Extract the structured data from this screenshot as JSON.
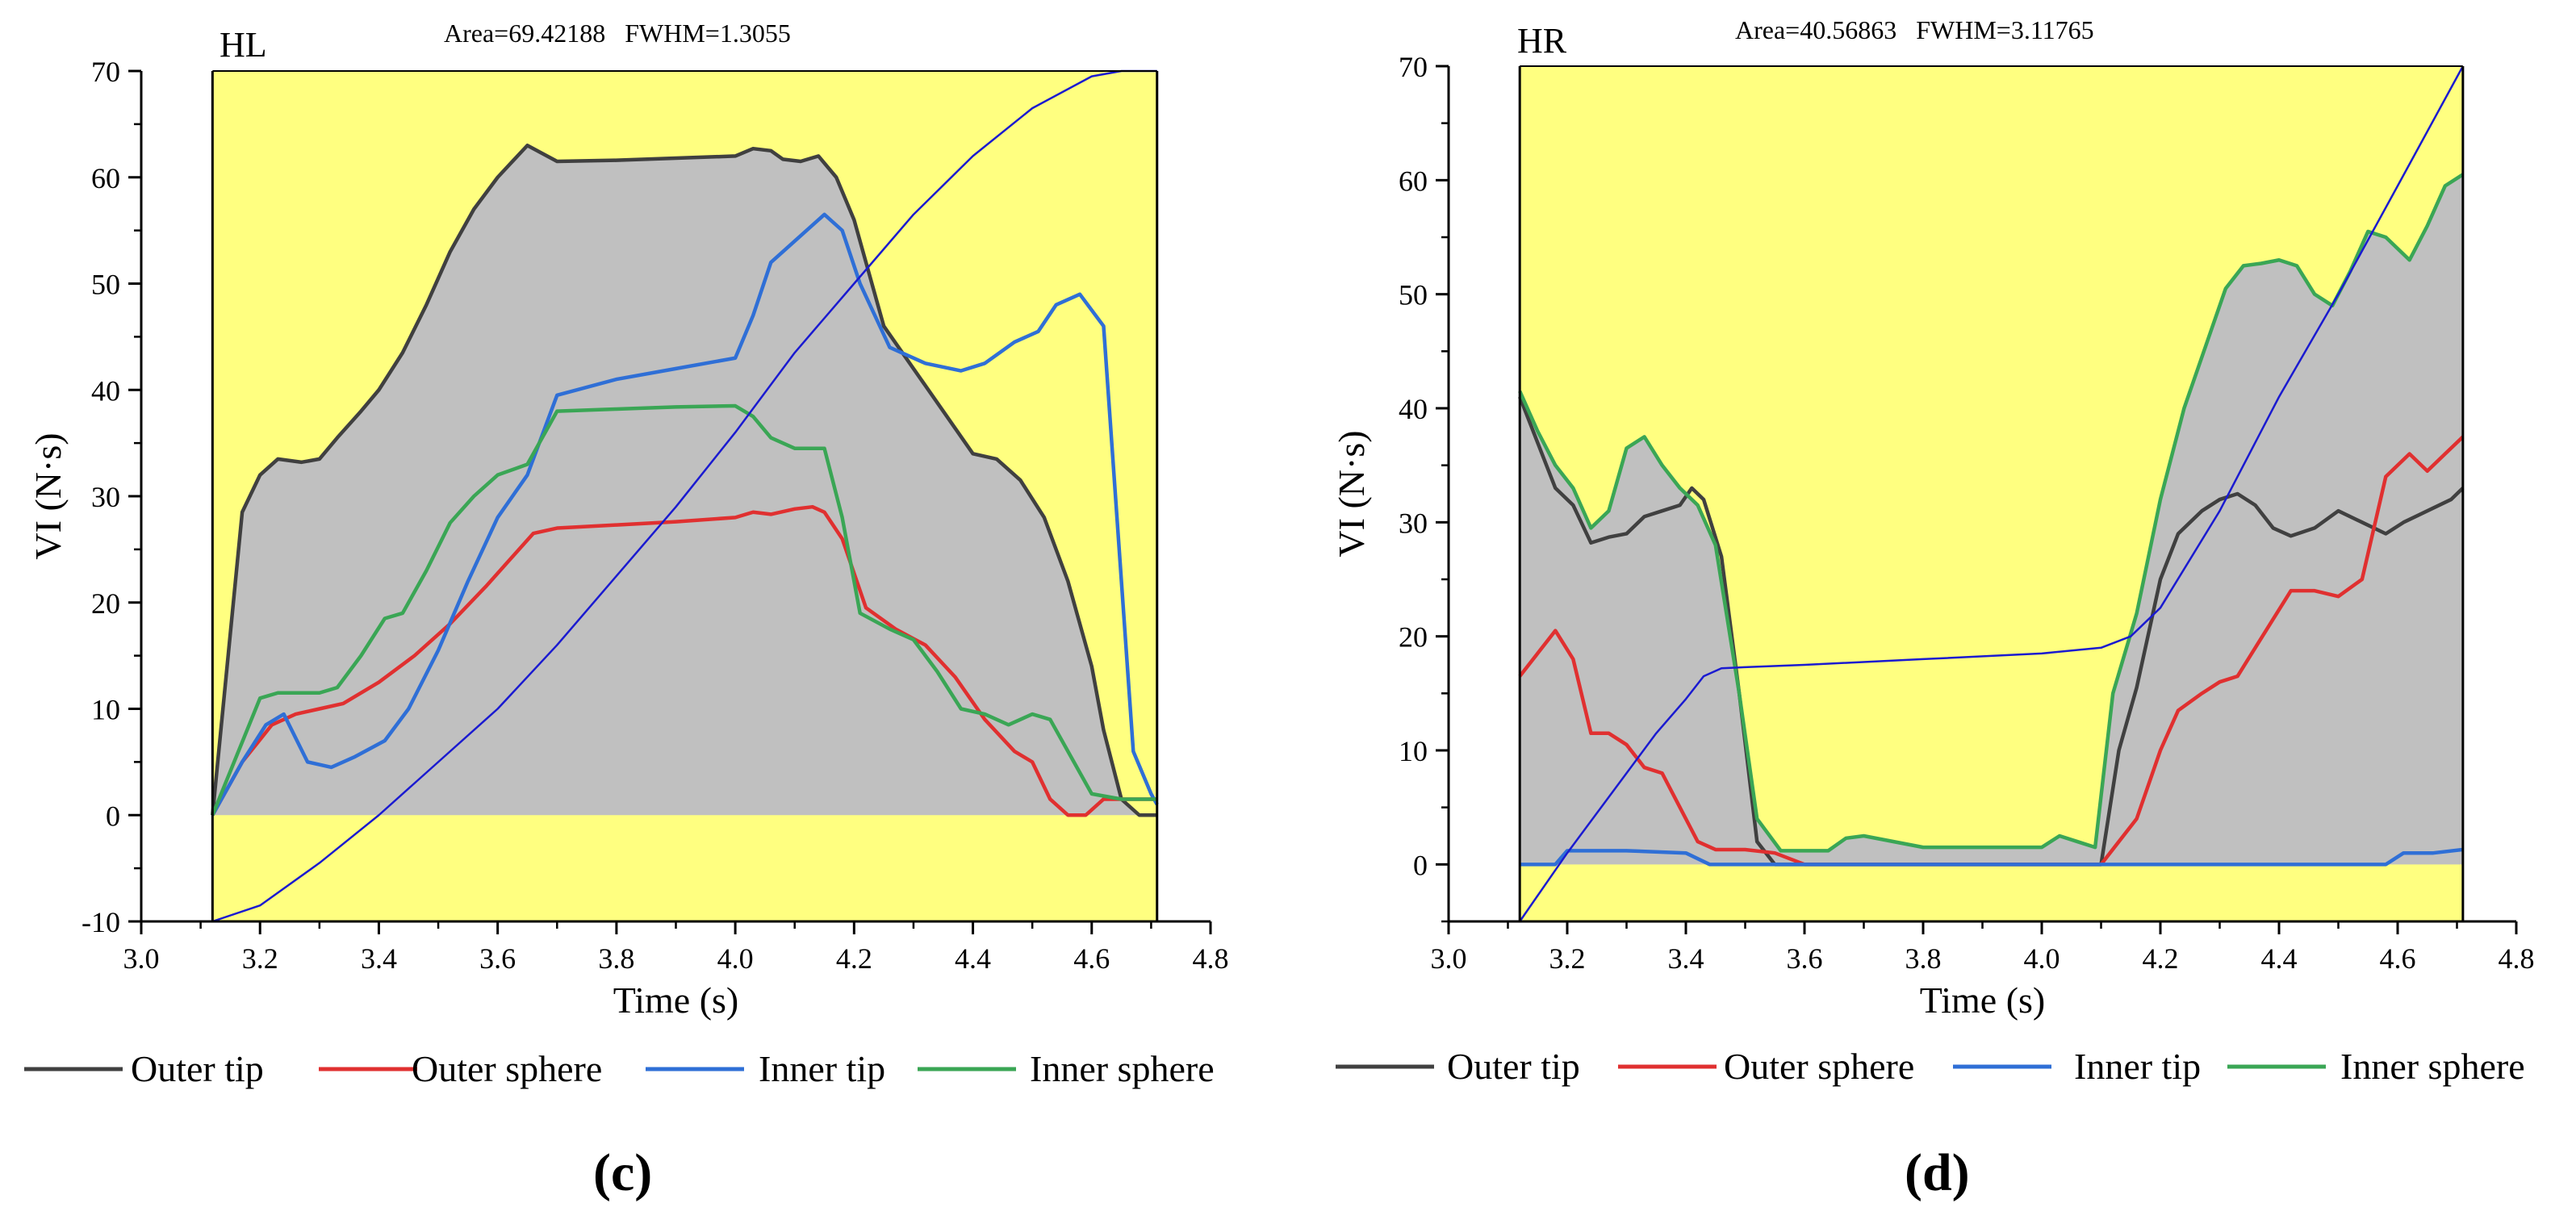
{
  "chart_data": [
    {
      "type": "line",
      "panel_label": "(c)",
      "title": "HL",
      "annotation": "Area=69.42188   FWHM=1.3055",
      "xlabel": "Time (s)",
      "ylabel": "VI (N·s)",
      "xlim": [
        3.0,
        4.8
      ],
      "ylim": [
        -10,
        70
      ],
      "plot_xrange": [
        3.12,
        4.71
      ],
      "xticks": [
        "3.0",
        "3.2",
        "3.4",
        "3.6",
        "3.8",
        "4.0",
        "4.2",
        "4.4",
        "4.6",
        "4.8"
      ],
      "yticks": [
        "-10",
        "0",
        "10",
        "20",
        "30",
        "40",
        "50",
        "60",
        "70"
      ],
      "background_color": "#ffff80",
      "fill_color": "#c0c0c0",
      "fill_between": "Outer tip",
      "fill_baseline": 0,
      "series": [
        {
          "name": "Outer tip",
          "color": "#404040",
          "x": [
            3.12,
            3.17,
            3.2,
            3.23,
            3.27,
            3.3,
            3.33,
            3.37,
            3.4,
            3.44,
            3.48,
            3.52,
            3.56,
            3.6,
            3.65,
            3.7,
            3.8,
            3.9,
            4.0,
            4.03,
            4.06,
            4.08,
            4.11,
            4.14,
            4.17,
            4.2,
            4.25,
            4.3,
            4.35,
            4.4,
            4.44,
            4.48,
            4.52,
            4.56,
            4.6,
            4.62,
            4.65,
            4.68,
            4.71
          ],
          "y": [
            0,
            28.5,
            32,
            33.5,
            33.2,
            33.5,
            35.5,
            38,
            40,
            43.5,
            48,
            53,
            57,
            60,
            63,
            61.5,
            61.6,
            61.8,
            62,
            62.7,
            62.5,
            61.7,
            61.5,
            62,
            60,
            56,
            46,
            42,
            38,
            34,
            33.5,
            31.5,
            28,
            22,
            14,
            8,
            1.5,
            0,
            0
          ]
        },
        {
          "name": "Outer sphere",
          "color": "#e03030",
          "x": [
            3.12,
            3.17,
            3.22,
            3.26,
            3.3,
            3.34,
            3.4,
            3.46,
            3.52,
            3.58,
            3.62,
            3.66,
            3.7,
            3.8,
            3.9,
            4.0,
            4.03,
            4.06,
            4.1,
            4.13,
            4.15,
            4.18,
            4.22,
            4.27,
            4.32,
            4.37,
            4.42,
            4.47,
            4.5,
            4.53,
            4.56,
            4.59,
            4.62,
            4.66,
            4.71
          ],
          "y": [
            0,
            5,
            8.5,
            9.5,
            10,
            10.5,
            12.5,
            15,
            18,
            21.5,
            24,
            26.5,
            27,
            27.3,
            27.6,
            28,
            28.5,
            28.3,
            28.8,
            29,
            28.5,
            26,
            19.5,
            17.5,
            16,
            13,
            9,
            6,
            5,
            1.5,
            0,
            0,
            1.5,
            1.5,
            1.5
          ]
        },
        {
          "name": "Inner tip",
          "color": "#2f6fd6",
          "x": [
            3.12,
            3.17,
            3.21,
            3.24,
            3.28,
            3.32,
            3.36,
            3.41,
            3.45,
            3.5,
            3.55,
            3.6,
            3.65,
            3.7,
            3.8,
            3.9,
            4.0,
            4.03,
            4.06,
            4.1,
            4.15,
            4.18,
            4.21,
            4.26,
            4.32,
            4.38,
            4.42,
            4.47,
            4.51,
            4.54,
            4.58,
            4.62,
            4.67,
            4.7,
            4.71
          ],
          "y": [
            0,
            5,
            8.5,
            9.5,
            5,
            4.5,
            5.5,
            7,
            10,
            15.5,
            22,
            28,
            32,
            39.5,
            41,
            42,
            43,
            47,
            52,
            54,
            56.5,
            55,
            50,
            44,
            42.5,
            41.8,
            42.5,
            44.5,
            45.5,
            48,
            49,
            46,
            6,
            2,
            1
          ]
        },
        {
          "name": "Inner sphere",
          "color": "#3aa655",
          "x": [
            3.12,
            3.2,
            3.23,
            3.27,
            3.3,
            3.33,
            3.37,
            3.41,
            3.44,
            3.48,
            3.52,
            3.56,
            3.6,
            3.65,
            3.7,
            3.8,
            3.9,
            4.0,
            4.03,
            4.06,
            4.1,
            4.15,
            4.18,
            4.21,
            4.26,
            4.3,
            4.34,
            4.38,
            4.42,
            4.46,
            4.5,
            4.53,
            4.57,
            4.6,
            4.65,
            4.71
          ],
          "y": [
            0,
            11,
            11.5,
            11.5,
            11.5,
            12,
            15,
            18.5,
            19,
            23,
            27.5,
            30,
            32,
            33,
            38,
            38.2,
            38.4,
            38.5,
            37.5,
            35.5,
            34.5,
            34.5,
            28,
            19,
            17.5,
            16.5,
            13.5,
            10,
            9.5,
            8.5,
            9.5,
            9,
            5,
            2,
            1.5,
            1.5
          ]
        },
        {
          "name": "",
          "color": "#1a1ad0",
          "x": [
            3.12,
            3.2,
            3.3,
            3.4,
            3.5,
            3.6,
            3.7,
            3.8,
            3.9,
            4.0,
            4.1,
            4.2,
            4.3,
            4.4,
            4.5,
            4.6,
            4.65,
            4.71
          ],
          "y": [
            -10,
            -8.5,
            -4.5,
            0,
            5,
            10,
            16,
            22.5,
            29,
            36,
            43.5,
            50,
            56.5,
            62,
            66.5,
            69.5,
            70,
            70
          ]
        }
      ]
    },
    {
      "type": "line",
      "panel_label": "(d)",
      "title": "HR",
      "annotation": "Area=40.56863   FWHM=3.11765",
      "xlabel": "Time (s)",
      "ylabel": "VI (N·s)",
      "xlim": [
        3.0,
        4.8
      ],
      "ylim": [
        -5,
        70
      ],
      "plot_xrange": [
        3.12,
        4.71
      ],
      "xticks": [
        "3.0",
        "3.2",
        "3.4",
        "3.6",
        "3.8",
        "4.0",
        "4.2",
        "4.4",
        "4.6",
        "4.8"
      ],
      "yticks": [
        "0",
        "10",
        "20",
        "30",
        "40",
        "50",
        "60",
        "70"
      ],
      "background_color": "#ffff80",
      "fill_color": "#c0c0c0",
      "fill_between": "Inner sphere",
      "fill_baseline": 0,
      "series": [
        {
          "name": "Outer tip",
          "color": "#404040",
          "x": [
            3.12,
            3.15,
            3.18,
            3.21,
            3.24,
            3.27,
            3.3,
            3.33,
            3.36,
            3.39,
            3.41,
            3.43,
            3.46,
            3.49,
            3.52,
            3.55,
            3.6,
            3.8,
            4.0,
            4.1,
            4.13,
            4.16,
            4.2,
            4.23,
            4.27,
            4.3,
            4.33,
            4.36,
            4.39,
            4.42,
            4.46,
            4.5,
            4.54,
            4.58,
            4.61,
            4.65,
            4.69,
            4.71
          ],
          "y": [
            41,
            37,
            33,
            31.5,
            28.2,
            28.7,
            29,
            30.5,
            31,
            31.5,
            33,
            32,
            27,
            15,
            2,
            0,
            0,
            0,
            0,
            0,
            10,
            15.5,
            25,
            29,
            31,
            32,
            32.5,
            31.5,
            29.5,
            28.8,
            29.5,
            31,
            30,
            29,
            30,
            31,
            32,
            33
          ]
        },
        {
          "name": "Outer sphere",
          "color": "#e03030",
          "x": [
            3.12,
            3.15,
            3.18,
            3.21,
            3.24,
            3.27,
            3.3,
            3.33,
            3.36,
            3.39,
            3.42,
            3.45,
            3.5,
            3.55,
            3.6,
            3.8,
            4.0,
            4.1,
            4.13,
            4.16,
            4.2,
            4.23,
            4.27,
            4.3,
            4.33,
            4.36,
            4.39,
            4.42,
            4.46,
            4.5,
            4.54,
            4.58,
            4.62,
            4.65,
            4.68,
            4.71
          ],
          "y": [
            16.5,
            18.5,
            20.5,
            18,
            11.5,
            11.5,
            10.5,
            8.5,
            8,
            5,
            2,
            1.3,
            1.3,
            1,
            0,
            0,
            0,
            0,
            2,
            4,
            10,
            13.5,
            15,
            16,
            16.5,
            19,
            21.5,
            24,
            24,
            23.5,
            25,
            34,
            36,
            34.5,
            36,
            37.5
          ]
        },
        {
          "name": "Inner tip",
          "color": "#2f6fd6",
          "x": [
            3.12,
            3.18,
            3.2,
            3.3,
            3.4,
            3.44,
            3.5,
            3.6,
            3.8,
            4.0,
            4.2,
            4.4,
            4.58,
            4.61,
            4.66,
            4.71
          ],
          "y": [
            0,
            0,
            1.2,
            1.2,
            1,
            0,
            0,
            0,
            0,
            0,
            0,
            0,
            0,
            1,
            1,
            1.3
          ]
        },
        {
          "name": "Inner sphere",
          "color": "#3aa655",
          "x": [
            3.12,
            3.15,
            3.18,
            3.21,
            3.24,
            3.27,
            3.3,
            3.33,
            3.36,
            3.39,
            3.42,
            3.45,
            3.49,
            3.52,
            3.56,
            3.6,
            3.64,
            3.67,
            3.7,
            3.8,
            3.9,
            4.0,
            4.03,
            4.06,
            4.09,
            4.12,
            4.16,
            4.2,
            4.24,
            4.28,
            4.31,
            4.34,
            4.37,
            4.4,
            4.43,
            4.46,
            4.49,
            4.52,
            4.55,
            4.58,
            4.62,
            4.65,
            4.68,
            4.71
          ],
          "y": [
            41.5,
            38,
            35,
            33,
            29.5,
            31,
            36.5,
            37.5,
            35,
            33,
            31.5,
            28,
            15,
            4,
            1.2,
            1.2,
            1.2,
            2.3,
            2.5,
            1.5,
            1.5,
            1.5,
            2.5,
            2,
            1.5,
            15,
            22,
            32,
            40,
            46,
            50.5,
            52.5,
            52.7,
            53,
            52.5,
            50,
            49,
            52,
            55.5,
            55,
            53,
            56,
            59.5,
            60.5
          ]
        },
        {
          "name": "",
          "color": "#1a1ad0",
          "x": [
            3.12,
            3.2,
            3.3,
            3.35,
            3.4,
            3.43,
            3.46,
            3.5,
            3.6,
            3.8,
            4.0,
            4.1,
            4.15,
            4.2,
            4.3,
            4.4,
            4.5,
            4.6,
            4.71
          ],
          "y": [
            -5,
            1,
            8,
            11.5,
            14.5,
            16.5,
            17.2,
            17.3,
            17.5,
            18,
            18.5,
            19,
            20,
            22.5,
            31,
            41,
            50,
            59.5,
            70
          ]
        }
      ]
    }
  ]
}
